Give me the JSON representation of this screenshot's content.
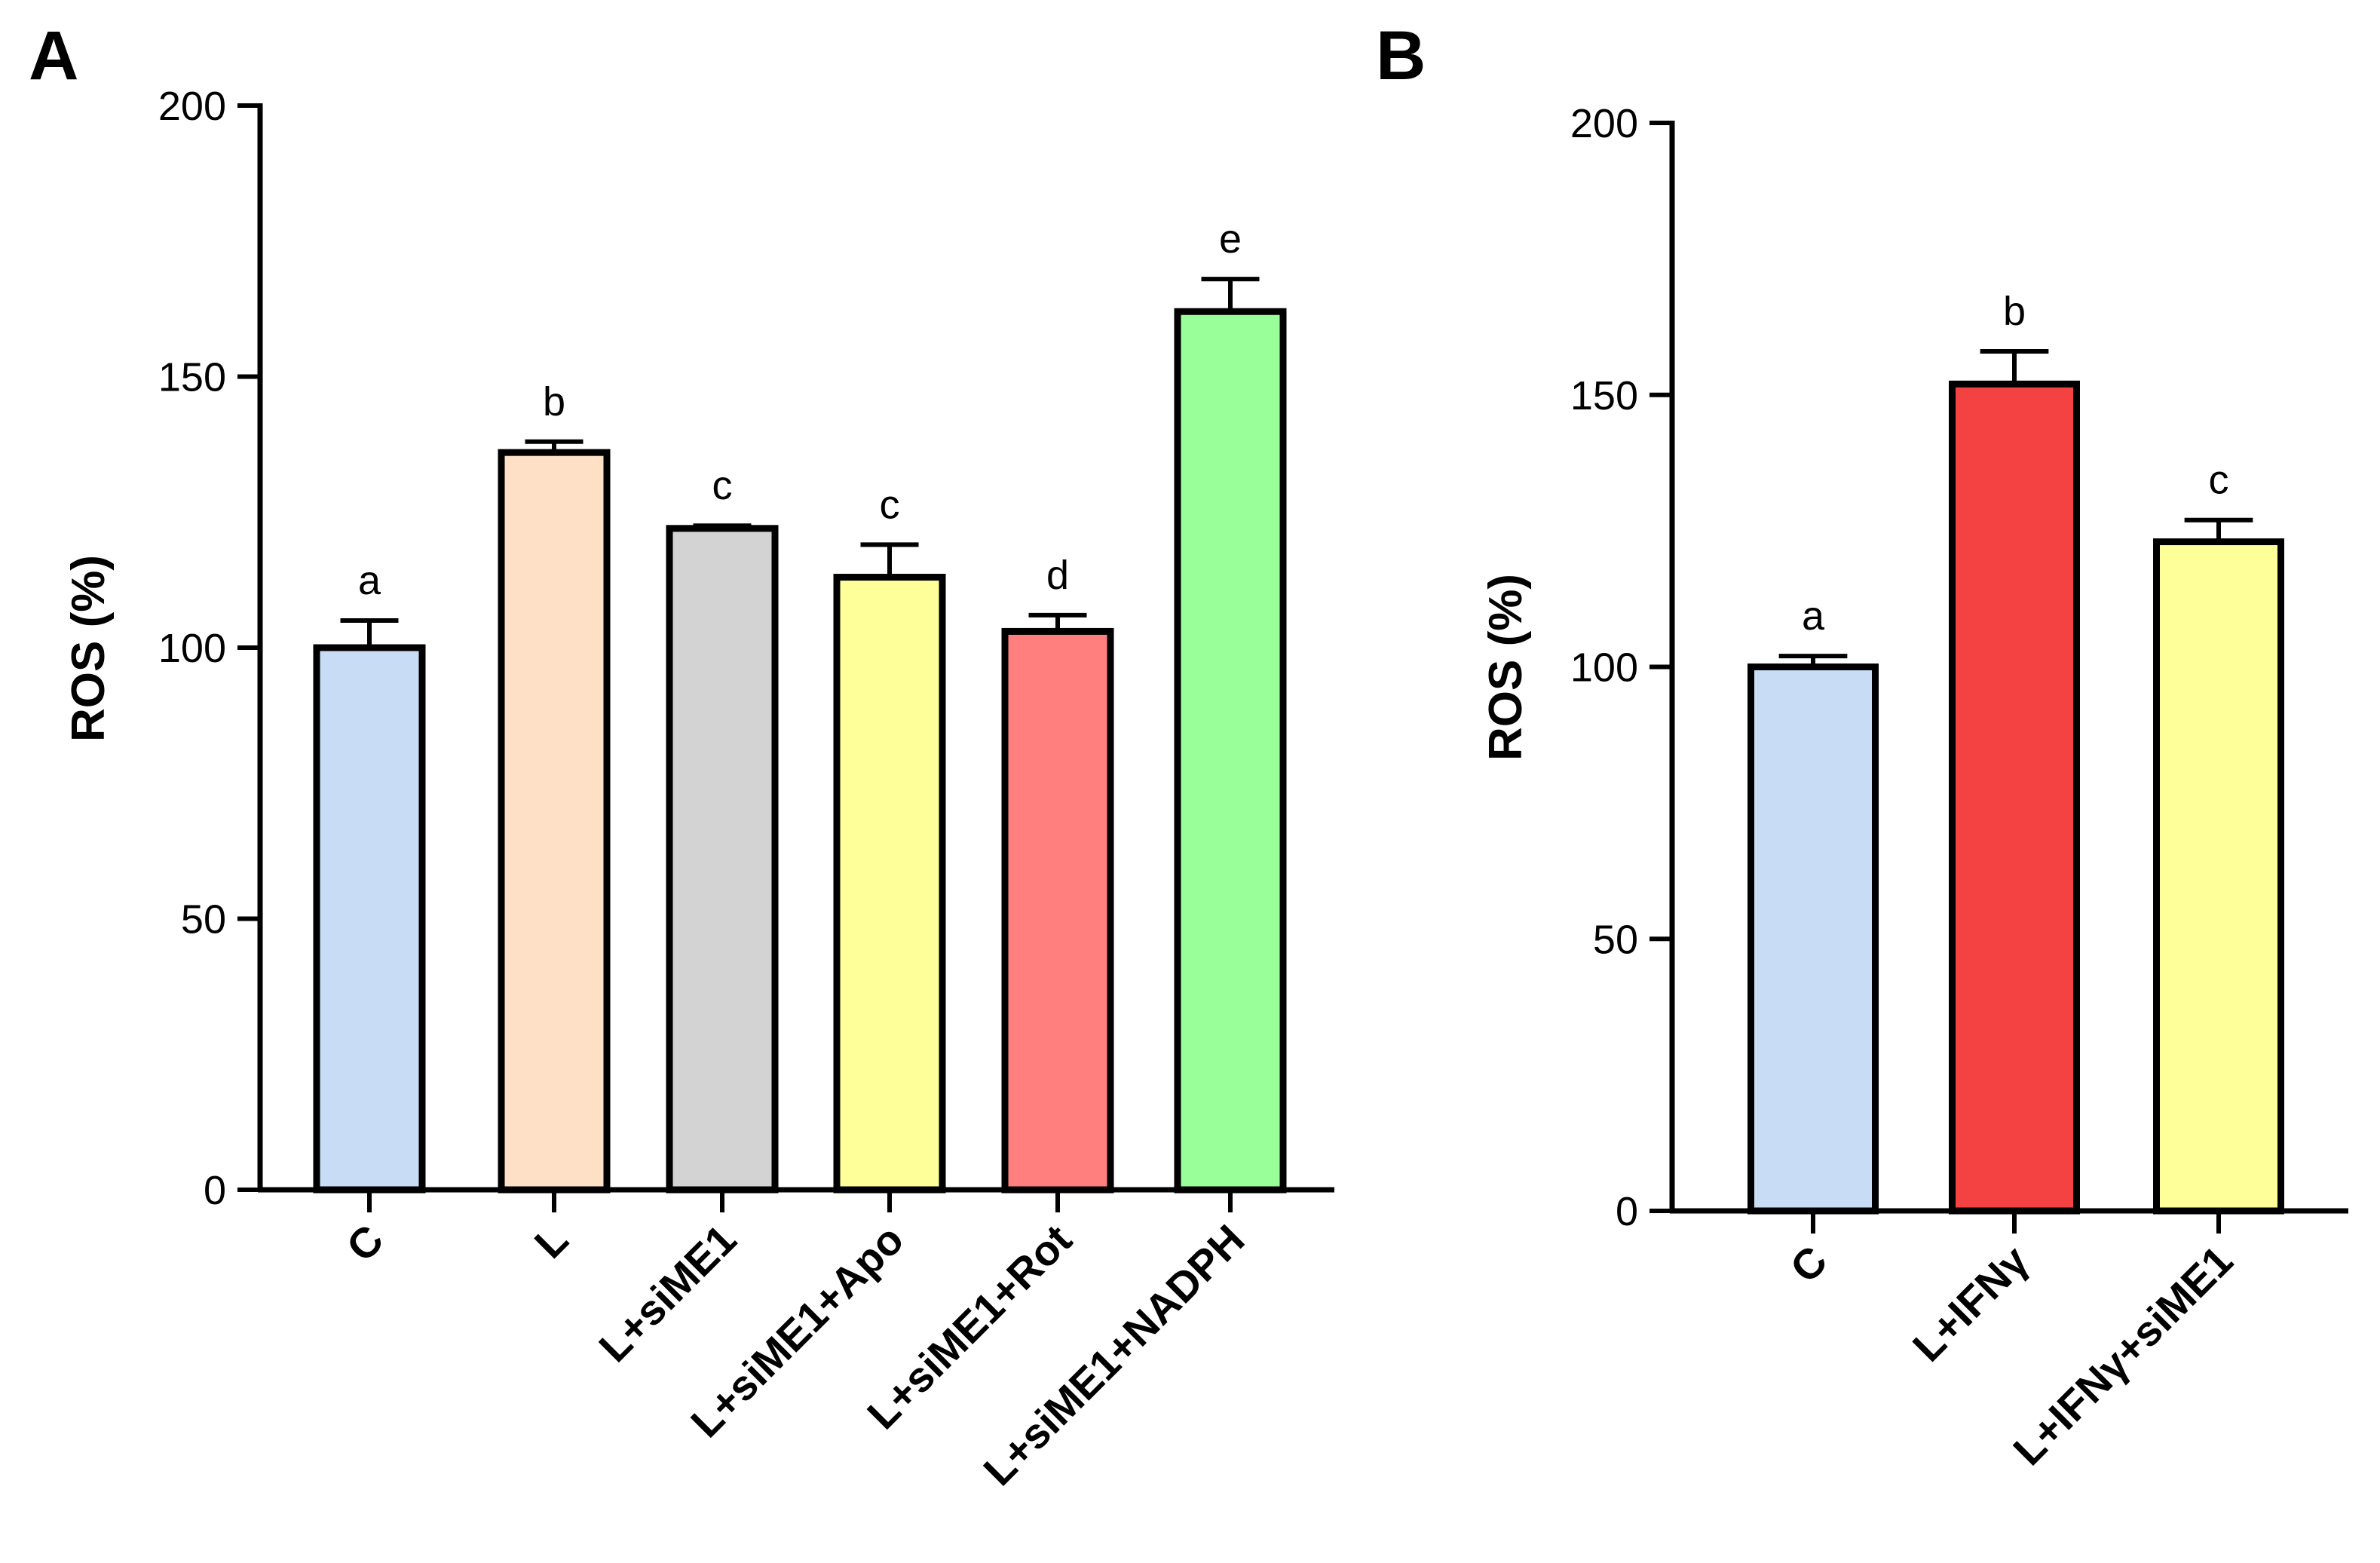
{
  "chart_data": [
    {
      "panel": "A",
      "type": "bar",
      "ylabel": "ROS (%)",
      "xlabel": "",
      "ylim": [
        0,
        200
      ],
      "yticks": [
        "0",
        "50",
        "100",
        "150",
        "200"
      ],
      "categories": [
        "C",
        "L",
        "L+siME1",
        "L+siME1+Apo",
        "L+siME1+Rot",
        "L+siME1+NADPH"
      ],
      "values": [
        100,
        136,
        122,
        113,
        103,
        162
      ],
      "errors": [
        5,
        2,
        0.5,
        6,
        3,
        6
      ],
      "significance": [
        "a",
        "b",
        "c",
        "c",
        "d",
        "e"
      ],
      "colors": [
        "#c8ddf5",
        "#fde0c5",
        "#d3d3d3",
        "#ffff99",
        "#ff7f7f",
        "#99ff99"
      ]
    },
    {
      "panel": "B",
      "type": "bar",
      "ylabel": "ROS (%)",
      "xlabel": "",
      "ylim": [
        0,
        200
      ],
      "yticks": [
        "0",
        "50",
        "100",
        "150",
        "200"
      ],
      "categories": [
        "C",
        "L+IFNγ",
        "L+IFNγ+siME1"
      ],
      "values": [
        100,
        152,
        123
      ],
      "errors": [
        2,
        6,
        4
      ],
      "significance": [
        "a",
        "b",
        "c"
      ],
      "colors": [
        "#c8ddf5",
        "#f44141",
        "#ffff99"
      ]
    }
  ]
}
